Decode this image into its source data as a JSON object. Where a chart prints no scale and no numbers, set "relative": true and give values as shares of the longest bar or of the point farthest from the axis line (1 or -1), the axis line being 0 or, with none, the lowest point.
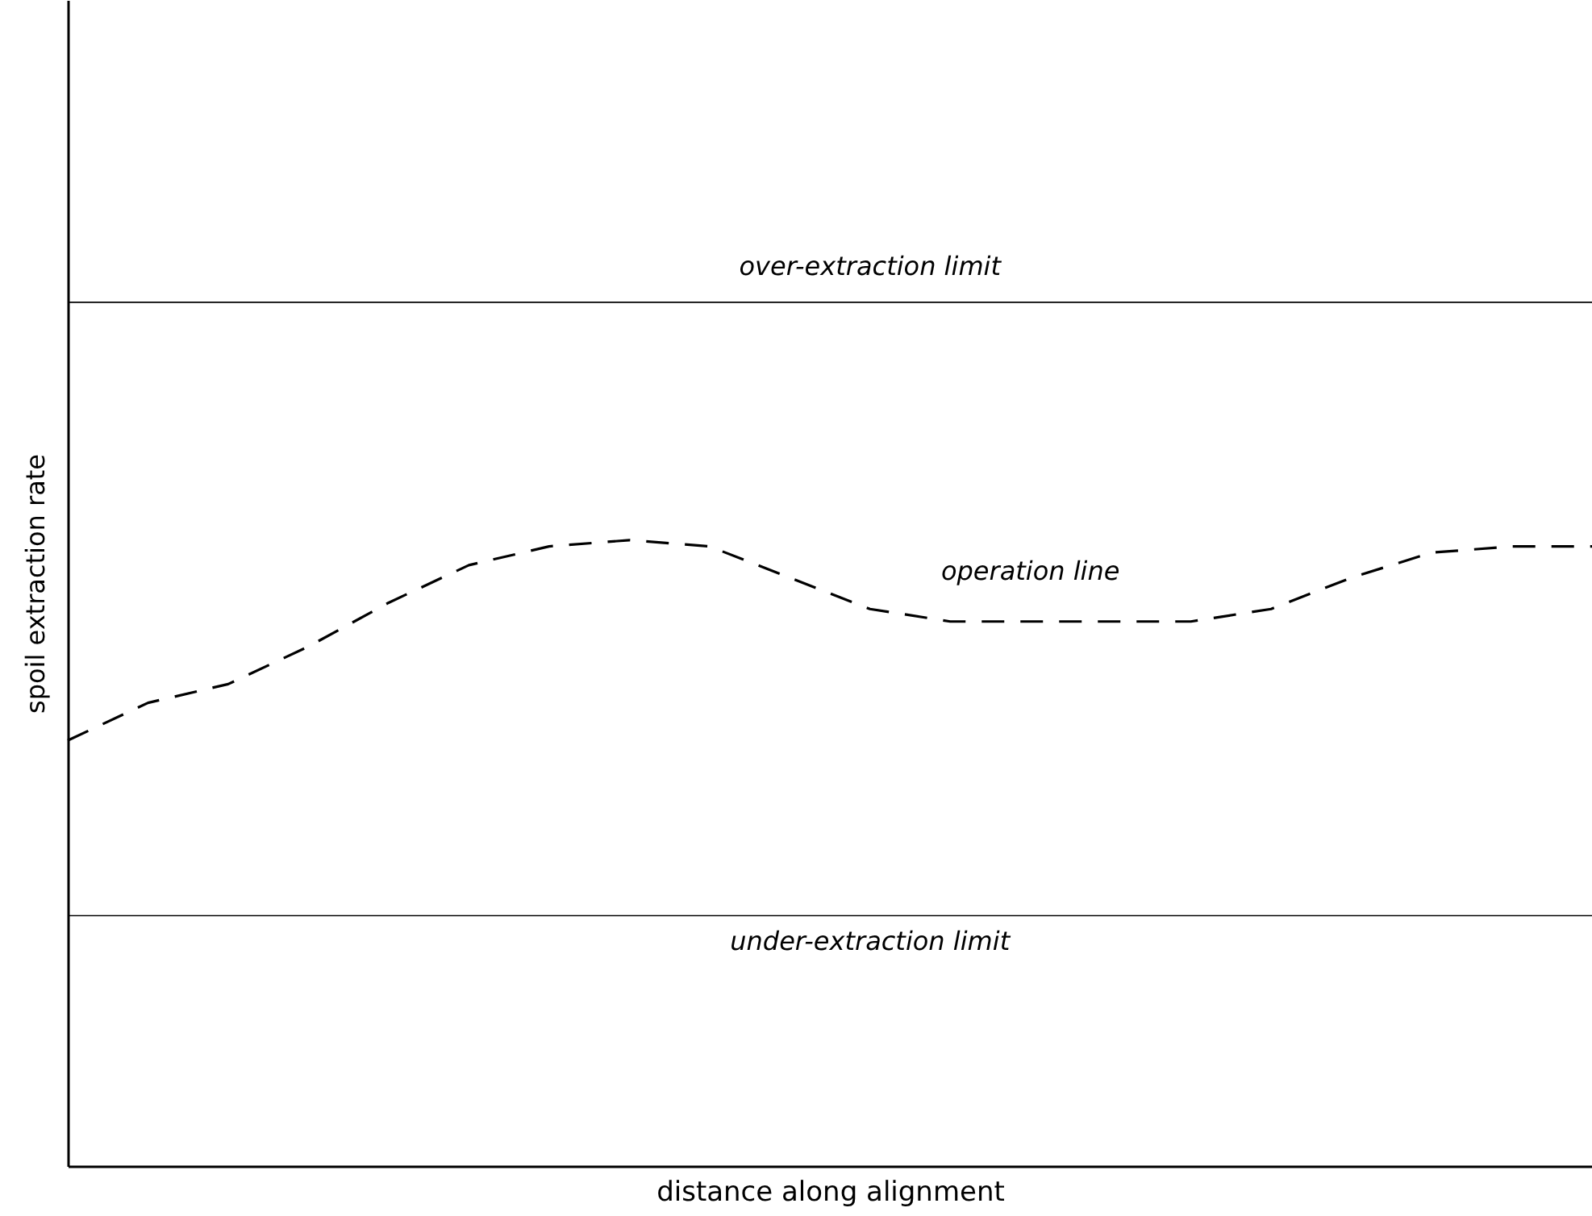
{
  "chart_data": {
    "type": "line",
    "relative": true,
    "xlabel": "distance along alignment",
    "ylabel": "spoil extraction rate",
    "categories": [
      null,
      null,
      null,
      null,
      null,
      null,
      null,
      null,
      null,
      null,
      null,
      null,
      null,
      null,
      null,
      null,
      null,
      null,
      null,
      null
    ],
    "series": [
      {
        "name": "operation line",
        "color": "#000000",
        "values": [
          0.68,
          0.74,
          0.77,
          0.83,
          0.9,
          0.96,
          0.99,
          1.0,
          0.99,
          0.94,
          0.89,
          0.87,
          0.87,
          0.87,
          0.87,
          0.89,
          0.94,
          0.98,
          0.99,
          0.99
        ]
      }
    ],
    "line_style": "dashed",
    "marker": "none",
    "grid": false,
    "ref_lines": [
      {
        "axis": "y",
        "value": 1.38,
        "label": "over-extraction limit",
        "color": "#000000"
      },
      {
        "axis": "y",
        "value": 0.4,
        "label": "under-extraction limit",
        "color": "#000000"
      }
    ]
  }
}
